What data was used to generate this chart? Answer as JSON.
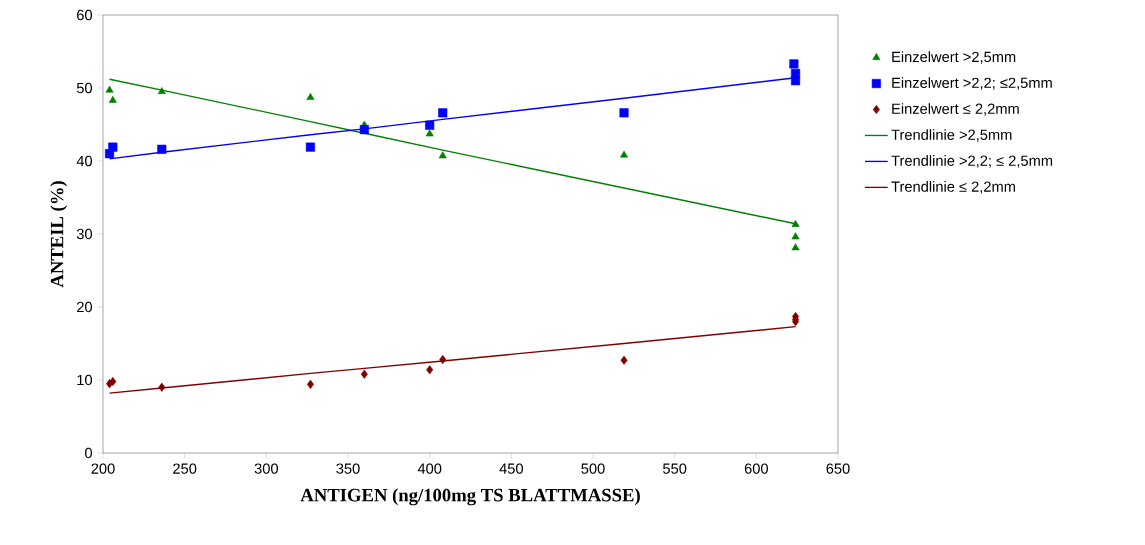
{
  "chart_data": {
    "type": "scatter",
    "xlabel": "ANTIGEN (ng/100mg TS BLATTMASSE)",
    "ylabel": "ANTEIL (%)",
    "xlim": [
      200,
      650
    ],
    "xticks": [
      200,
      250,
      300,
      350,
      400,
      450,
      500,
      550,
      600,
      650
    ],
    "ylim": [
      0,
      60
    ],
    "yticks": [
      0,
      10,
      20,
      30,
      40,
      50,
      60
    ],
    "legend": "right",
    "series": [
      {
        "name": "Einzelwert >2,5mm",
        "color": "#008000",
        "marker": "triangle",
        "x": [
          204,
          206,
          236,
          327,
          360,
          400,
          408,
          519,
          624,
          624,
          624
        ],
        "values": [
          49.7,
          48.3,
          49.5,
          48.7,
          44.9,
          43.7,
          40.7,
          40.8,
          31.3,
          29.6,
          28.1
        ]
      },
      {
        "name": "Einzelwert >2,2; ≤2,5mm",
        "color": "#0000ff",
        "marker": "square",
        "x": [
          204,
          206,
          236,
          327,
          360,
          400,
          408,
          519,
          623,
          624,
          624
        ],
        "values": [
          41.0,
          41.9,
          41.6,
          41.9,
          44.3,
          44.9,
          46.6,
          46.6,
          53.3,
          52.0,
          51.0
        ]
      },
      {
        "name": "Einzelwert ≤ 2,2mm",
        "color": "#800000",
        "marker": "diamond",
        "x": [
          204,
          206,
          236,
          327,
          360,
          400,
          408,
          519,
          624,
          624,
          624
        ],
        "values": [
          9.5,
          9.8,
          9.0,
          9.4,
          10.8,
          11.4,
          12.8,
          12.7,
          18.7,
          18.3,
          18.0
        ]
      },
      {
        "name": "Trendlinie >2,5mm",
        "type": "line",
        "color": "#008000",
        "marker": "none",
        "x": [
          204,
          236,
          327,
          360,
          408,
          519,
          624
        ],
        "values": [
          51.2,
          49.7,
          45.4,
          43.8,
          41.5,
          36.3,
          31.4
        ]
      },
      {
        "name": "Trendlinie >2,2; ≤ 2,5mm",
        "type": "line",
        "color": "#0000ff",
        "marker": "none",
        "x": [
          204,
          236,
          327,
          360,
          408,
          519,
          624
        ],
        "values": [
          40.3,
          41.2,
          43.6,
          44.4,
          45.7,
          48.6,
          51.4
        ]
      },
      {
        "name": "Trendlinie ≤ 2,2mm",
        "type": "line",
        "color": "#800000",
        "marker": "none",
        "x": [
          204,
          236,
          327,
          360,
          408,
          519,
          624
        ],
        "values": [
          8.2,
          8.9,
          10.9,
          11.6,
          12.6,
          15.0,
          17.3
        ]
      }
    ]
  }
}
